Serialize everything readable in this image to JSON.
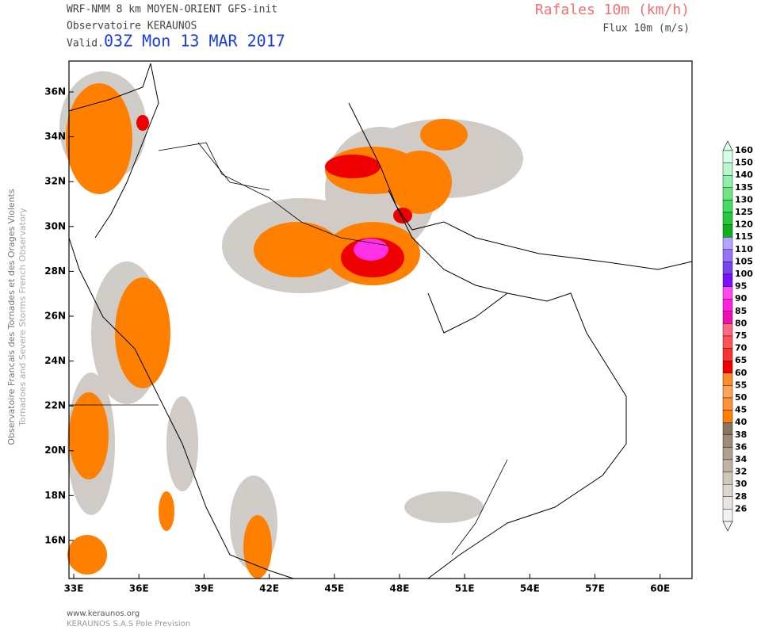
{
  "header": {
    "model": "WRF-NMM 8 km MOYEN-ORIENT  GFS-init",
    "org": "Observatoire KERAUNOS",
    "valid_label": "Valid.",
    "valid_time": "03Z Mon 13 MAR 2017",
    "field": "Rafales 10m (km/h)",
    "subfield": "Flux 10m (m/s)"
  },
  "side": {
    "line1": "Observatoire Francais des Tornades et des Orages Violents",
    "line2": "Tornadoes and Severe Storms French Observatory"
  },
  "footer": {
    "site": "www.keraunos.org",
    "company": "KERAUNOS S.A.S Pole Prevision"
  },
  "map": {
    "xlim": [
      32.78,
      61.47
    ],
    "ylim": [
      14.3,
      37.38
    ],
    "xticks": [
      {
        "value": 33,
        "label": "33E"
      },
      {
        "value": 36,
        "label": "36E"
      },
      {
        "value": 39,
        "label": "39E"
      },
      {
        "value": 42,
        "label": "42E"
      },
      {
        "value": 45,
        "label": "45E"
      },
      {
        "value": 48,
        "label": "48E"
      },
      {
        "value": 51,
        "label": "51E"
      },
      {
        "value": 54,
        "label": "54E"
      },
      {
        "value": 57,
        "label": "57E"
      },
      {
        "value": 60,
        "label": "60E"
      }
    ],
    "yticks": [
      {
        "value": 36,
        "label": "36N"
      },
      {
        "value": 34,
        "label": "34N"
      },
      {
        "value": 32,
        "label": "32N"
      },
      {
        "value": 30,
        "label": "30N"
      },
      {
        "value": 28,
        "label": "28N"
      },
      {
        "value": 26,
        "label": "26N"
      },
      {
        "value": 24,
        "label": "24N"
      },
      {
        "value": 22,
        "label": "22N"
      },
      {
        "value": 20,
        "label": "20N"
      },
      {
        "value": 18,
        "label": "18N"
      },
      {
        "value": 16,
        "label": "16N"
      }
    ]
  },
  "colorbar": [
    {
      "value": 160,
      "color": "#d8ffe8"
    },
    {
      "value": 150,
      "color": "#b8f7cc"
    },
    {
      "value": 140,
      "color": "#92efaa"
    },
    {
      "value": 135,
      "color": "#6ee684"
    },
    {
      "value": 130,
      "color": "#44dc5e"
    },
    {
      "value": 125,
      "color": "#26c840"
    },
    {
      "value": 120,
      "color": "#12ae22"
    },
    {
      "value": 115,
      "color": "#b4a4ff"
    },
    {
      "value": 110,
      "color": "#9474f4"
    },
    {
      "value": 105,
      "color": "#7444ee"
    },
    {
      "value": 100,
      "color": "#7a10ff"
    },
    {
      "value": 95,
      "color": "#ff48f0"
    },
    {
      "value": 90,
      "color": "#ff22e0"
    },
    {
      "value": 85,
      "color": "#ee10b4"
    },
    {
      "value": 80,
      "color": "#ff6880"
    },
    {
      "value": 75,
      "color": "#ff5454"
    },
    {
      "value": 70,
      "color": "#f83434"
    },
    {
      "value": 65,
      "color": "#ee0000"
    },
    {
      "value": 60,
      "color": "#ff8a2a"
    },
    {
      "value": 55,
      "color": "#ffa456"
    },
    {
      "value": 50,
      "color": "#ff9236"
    },
    {
      "value": 45,
      "color": "#ff8000"
    },
    {
      "value": 40,
      "color": "#8a7560"
    },
    {
      "value": 38,
      "color": "#9e8a78"
    },
    {
      "value": 36,
      "color": "#b0a090"
    },
    {
      "value": 34,
      "color": "#c0b4a8"
    },
    {
      "value": 32,
      "color": "#cfc6bc"
    },
    {
      "value": 30,
      "color": "#ddd6cf"
    },
    {
      "value": 28,
      "color": "#e8e4df"
    },
    {
      "value": 26,
      "color": "#f4f2f0"
    }
  ]
}
